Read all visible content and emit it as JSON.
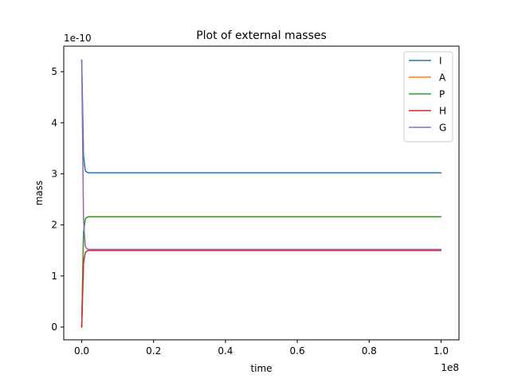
{
  "chart_data": {
    "type": "line",
    "title": "Plot of external masses",
    "xlabel": "time",
    "ylabel": "mass",
    "x_offset_label": "1e8",
    "y_offset_label": "1e-10",
    "xlim": [
      -0.05,
      1.05
    ],
    "ylim": [
      -0.25,
      5.5
    ],
    "x_ticks": [
      0.0,
      0.2,
      0.4,
      0.6,
      0.8,
      1.0
    ],
    "x_tick_labels": [
      "0.0",
      "0.2",
      "0.4",
      "0.6",
      "0.8",
      "1.0"
    ],
    "y_ticks": [
      0,
      1,
      2,
      3,
      4,
      5
    ],
    "y_tick_labels": [
      "0",
      "1",
      "2",
      "3",
      "4",
      "5"
    ],
    "grid": false,
    "legend_position": "top-right",
    "x": [
      0,
      0.005,
      0.01,
      0.015,
      0.02,
      0.03,
      0.05,
      0.1,
      0.2,
      0.4,
      0.6,
      0.8,
      1.0
    ],
    "series": [
      {
        "name": "I",
        "color": "#1f77b4",
        "values": [
          5.23,
          3.35,
          3.06,
          3.03,
          3.02,
          3.02,
          3.02,
          3.02,
          3.02,
          3.02,
          3.02,
          3.02,
          3.02
        ]
      },
      {
        "name": "A",
        "color": "#ff7f0e",
        "values": [
          0.0,
          1.85,
          2.12,
          2.15,
          2.16,
          2.16,
          2.16,
          2.16,
          2.16,
          2.16,
          2.16,
          2.16,
          2.16
        ]
      },
      {
        "name": "P",
        "color": "#2ca02c",
        "values": [
          0.0,
          1.85,
          2.12,
          2.15,
          2.16,
          2.16,
          2.16,
          2.16,
          2.16,
          2.16,
          2.16,
          2.16,
          2.16
        ]
      },
      {
        "name": "H",
        "color": "#d62728",
        "values": [
          0.0,
          1.25,
          1.46,
          1.49,
          1.5,
          1.5,
          1.5,
          1.5,
          1.5,
          1.5,
          1.5,
          1.5,
          1.5
        ]
      },
      {
        "name": "G",
        "color": "#9467bd",
        "values": [
          5.23,
          2.1,
          1.58,
          1.53,
          1.52,
          1.52,
          1.52,
          1.52,
          1.52,
          1.52,
          1.52,
          1.52,
          1.52
        ]
      }
    ]
  }
}
